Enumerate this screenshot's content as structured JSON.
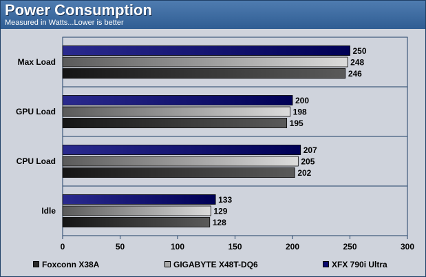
{
  "header": {
    "title": "Power Consumption",
    "subtitle": "Measured in Watts...Lower is better"
  },
  "chart_data": {
    "type": "bar",
    "orientation": "horizontal",
    "title": "Power Consumption",
    "subtitle": "Measured in Watts...Lower is better",
    "categories": [
      "Max Load",
      "GPU Load",
      "CPU Load",
      "Idle"
    ],
    "series": [
      {
        "name": "XFX 790i Ultra",
        "values": [
          250,
          200,
          207,
          133
        ],
        "color": "#0a0a6e"
      },
      {
        "name": "GIGABYTE X48T-DQ6",
        "values": [
          248,
          198,
          205,
          129
        ],
        "color": "#9a9a9a"
      },
      {
        "name": "Foxconn X38A",
        "values": [
          246,
          195,
          202,
          128
        ],
        "color": "#2a2a2a"
      }
    ],
    "xlim": [
      0,
      300
    ],
    "xticks": [
      0,
      50,
      100,
      150,
      200,
      250,
      300
    ],
    "grid": false,
    "legend_position": "bottom",
    "legend_order": [
      "Foxconn X38A",
      "GIGABYTE X48T-DQ6",
      "XFX 790i Ultra"
    ]
  }
}
